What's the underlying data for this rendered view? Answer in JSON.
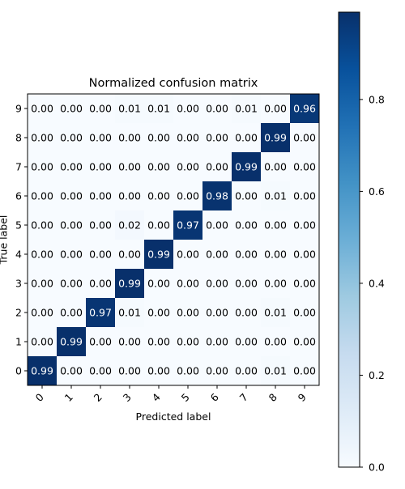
{
  "chart_data": {
    "type": "heatmap",
    "title": "Normalized confusion matrix",
    "xlabel": "Predicted label",
    "ylabel": "True label",
    "x_categories": [
      "0",
      "1",
      "2",
      "3",
      "4",
      "5",
      "6",
      "7",
      "8",
      "9"
    ],
    "y_categories": [
      "0",
      "1",
      "2",
      "3",
      "4",
      "5",
      "6",
      "7",
      "8",
      "9"
    ],
    "matrix": [
      [
        0.99,
        0.0,
        0.0,
        0.0,
        0.0,
        0.0,
        0.0,
        0.0,
        0.01,
        0.0
      ],
      [
        0.0,
        0.99,
        0.0,
        0.0,
        0.0,
        0.0,
        0.0,
        0.0,
        0.0,
        0.0
      ],
      [
        0.0,
        0.0,
        0.97,
        0.01,
        0.0,
        0.0,
        0.0,
        0.0,
        0.01,
        0.0
      ],
      [
        0.0,
        0.0,
        0.0,
        0.99,
        0.0,
        0.0,
        0.0,
        0.0,
        0.0,
        0.0
      ],
      [
        0.0,
        0.0,
        0.0,
        0.0,
        0.99,
        0.0,
        0.0,
        0.0,
        0.0,
        0.0
      ],
      [
        0.0,
        0.0,
        0.0,
        0.02,
        0.0,
        0.97,
        0.0,
        0.0,
        0.0,
        0.0
      ],
      [
        0.0,
        0.0,
        0.0,
        0.0,
        0.0,
        0.0,
        0.98,
        0.0,
        0.01,
        0.0
      ],
      [
        0.0,
        0.0,
        0.0,
        0.0,
        0.0,
        0.0,
        0.0,
        0.99,
        0.0,
        0.0
      ],
      [
        0.0,
        0.0,
        0.0,
        0.0,
        0.0,
        0.0,
        0.0,
        0.0,
        0.99,
        0.0
      ],
      [
        0.0,
        0.0,
        0.0,
        0.01,
        0.01,
        0.0,
        0.0,
        0.01,
        0.0,
        0.96
      ]
    ],
    "value_format": "0.00",
    "colormap": "Blues",
    "colormap_stops": [
      "#f7fbff",
      "#deebf7",
      "#c6dbef",
      "#9ecae1",
      "#6baed6",
      "#4292c6",
      "#2171b5",
      "#08519c",
      "#08306b"
    ],
    "text_color_light": "#ffffff",
    "text_color_dark": "#000000",
    "x_tick_rotation": 45,
    "row_order": "bottom-to-top",
    "colorbar": {
      "range": [
        0,
        0.99
      ],
      "ticks": [
        0.0,
        0.2,
        0.4,
        0.6,
        0.8
      ],
      "tick_labels": [
        "0.0",
        "0.2",
        "0.4",
        "0.6",
        "0.8"
      ]
    }
  }
}
